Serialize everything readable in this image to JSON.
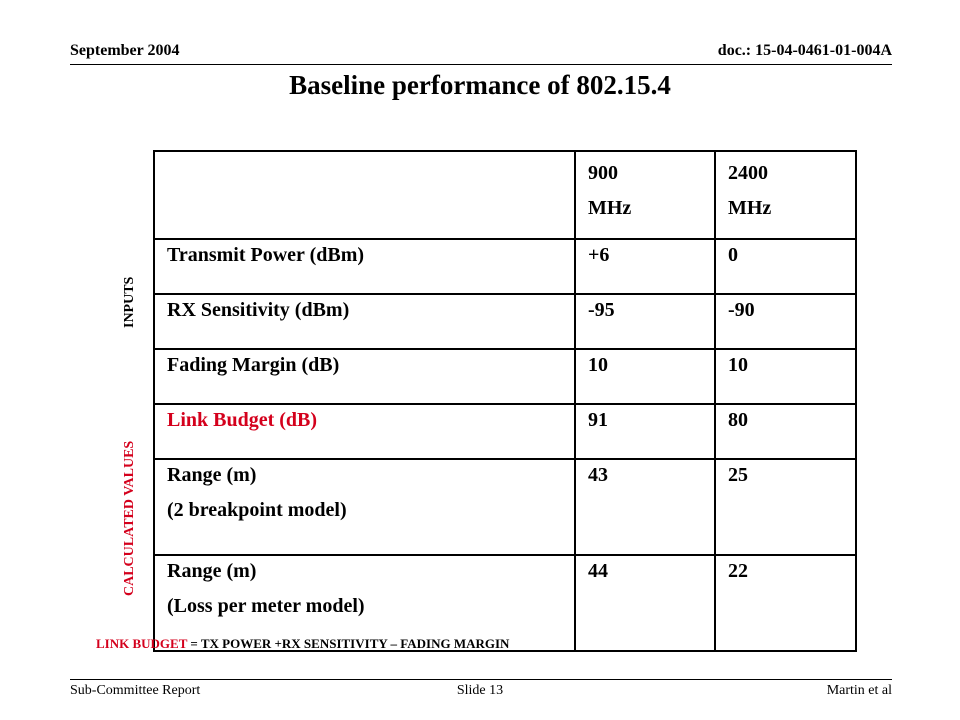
{
  "header": {
    "date": "September 2004",
    "doc_id": "doc.: 15-04-0461-01-004A"
  },
  "slide_title": "Baseline performance of 802.15.4",
  "table": {
    "col_headers": {
      "c900": "900",
      "c900_unit": "MHz",
      "c2400": "2400",
      "c2400_unit": "MHz"
    },
    "rows": [
      {
        "label": "Transmit Power (dBm)",
        "v900": "+6",
        "v2400": "0"
      },
      {
        "label": "RX Sensitivity (dBm)",
        "v900": "-95",
        "v2400": "-90"
      },
      {
        "label": "Fading Margin (dB)",
        "v900": "10",
        "v2400": "10"
      },
      {
        "label": "Link Budget (dB)",
        "v900": "91",
        "v2400": "80"
      },
      {
        "label": "Range (m)",
        "sublabel": "(2 breakpoint model)",
        "v900": "43",
        "v2400": "25"
      },
      {
        "label": "Range (m)",
        "sublabel": "(Loss per meter model)",
        "v900": "44",
        "v2400": "22"
      }
    ]
  },
  "side_labels": {
    "inputs": "INPUTS",
    "calculated": "CALCULATED VALUES"
  },
  "formula": {
    "term": "LINK BUDGET",
    "rest": " = TX POWER +RX SENSITIVITY – FADING MARGIN"
  },
  "footer": {
    "left": "Sub-Committee Report",
    "center": "Slide 13",
    "right": "Martin et al"
  },
  "colors": {
    "accent_red": "#d4001c"
  }
}
